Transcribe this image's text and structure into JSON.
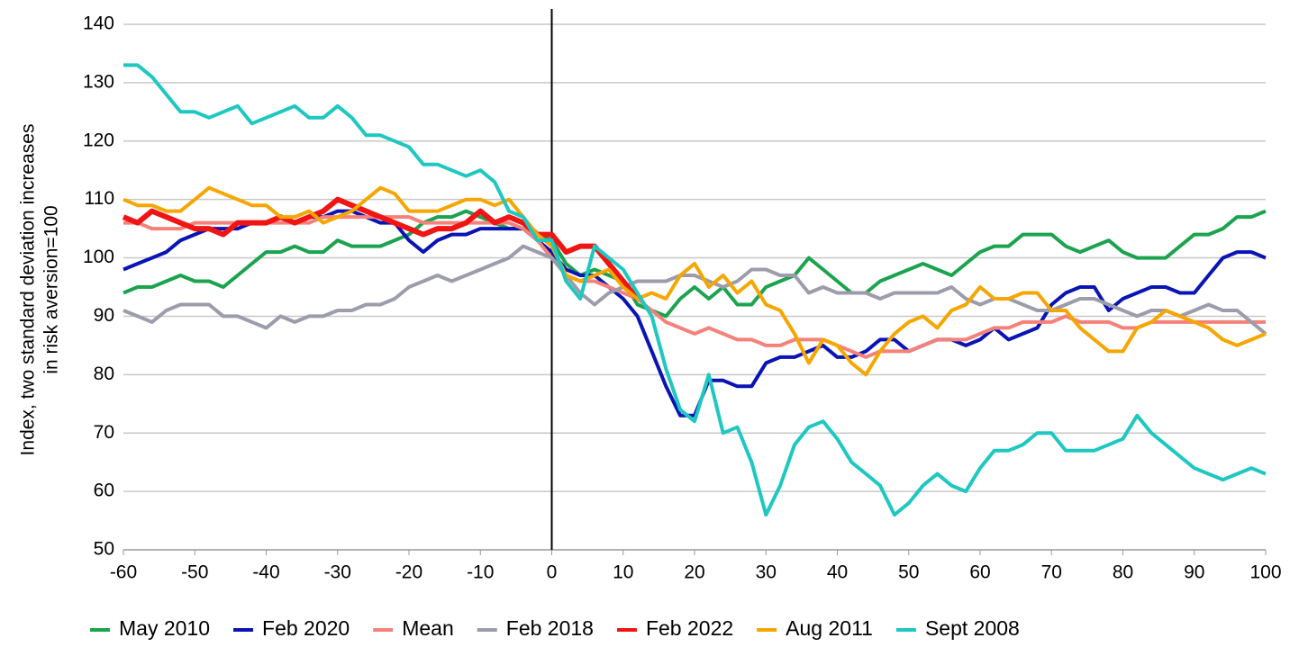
{
  "chart_data": {
    "type": "line",
    "y_label": [
      "Index, two standard deviation increases",
      "in risk aversion=100"
    ],
    "x": [
      -60,
      -58,
      -56,
      -54,
      -52,
      -50,
      -48,
      -46,
      -44,
      -42,
      -40,
      -38,
      -36,
      -34,
      -32,
      -30,
      -28,
      -26,
      -24,
      -22,
      -20,
      -18,
      -16,
      -14,
      -12,
      -10,
      -8,
      -6,
      -4,
      -2,
      0,
      2,
      4,
      6,
      8,
      10,
      12,
      14,
      16,
      18,
      20,
      22,
      24,
      26,
      28,
      30,
      32,
      34,
      36,
      38,
      40,
      42,
      44,
      46,
      48,
      50,
      52,
      54,
      56,
      58,
      60,
      62,
      64,
      66,
      68,
      70,
      72,
      74,
      76,
      78,
      80,
      82,
      84,
      86,
      88,
      90,
      92,
      94,
      96,
      98,
      100
    ],
    "xlim": [
      -60,
      100
    ],
    "xticks": [
      -60,
      -50,
      -40,
      -30,
      -20,
      -10,
      0,
      10,
      20,
      30,
      40,
      50,
      60,
      70,
      80,
      90,
      100
    ],
    "ylim": [
      50,
      140
    ],
    "yticks": [
      50,
      60,
      70,
      80,
      90,
      100,
      110,
      120,
      130,
      140
    ],
    "grid": true,
    "legend": "bottom",
    "vline_x": 0,
    "series": [
      {
        "name": "May 2010",
        "color": "#1ba34f",
        "line_width": 4,
        "values": [
          94,
          95,
          95,
          96,
          97,
          96,
          96,
          95,
          97,
          99,
          101,
          101,
          102,
          101,
          101,
          103,
          102,
          102,
          102,
          103,
          104,
          106,
          107,
          107,
          108,
          107,
          106,
          105,
          105,
          104,
          103,
          99,
          97,
          98,
          97,
          96,
          92,
          91,
          90,
          93,
          95,
          93,
          95,
          92,
          92,
          95,
          96,
          97,
          100,
          98,
          96,
          94,
          94,
          96,
          97,
          98,
          99,
          98,
          97,
          99,
          101,
          102,
          102,
          104,
          104,
          104,
          102,
          101,
          102,
          103,
          101,
          100,
          100,
          100,
          102,
          104,
          104,
          105,
          107,
          107,
          108
        ]
      },
      {
        "name": "Feb 2020",
        "color": "#0a14b4",
        "line_width": 4,
        "values": [
          98,
          99,
          100,
          101,
          103,
          104,
          105,
          105,
          105,
          106,
          106,
          107,
          106,
          107,
          107,
          108,
          108,
          107,
          106,
          106,
          103,
          101,
          103,
          104,
          104,
          105,
          105,
          105,
          105,
          103,
          101,
          98,
          97,
          97,
          95,
          93,
          90,
          84,
          78,
          73,
          73,
          79,
          79,
          78,
          78,
          82,
          83,
          83,
          84,
          85,
          83,
          83,
          84,
          86,
          86,
          84,
          85,
          86,
          86,
          85,
          86,
          88,
          86,
          87,
          88,
          92,
          94,
          95,
          95,
          91,
          93,
          94,
          95,
          95,
          94,
          94,
          97,
          100,
          101,
          101,
          100
        ]
      },
      {
        "name": "Mean",
        "color": "#f4827a",
        "line_width": 4,
        "values": [
          106,
          106,
          105,
          105,
          105,
          106,
          106,
          106,
          106,
          106,
          106,
          106,
          106,
          106,
          107,
          107,
          107,
          107,
          107,
          107,
          107,
          106,
          106,
          106,
          106,
          106,
          106,
          106,
          105,
          103,
          100,
          97,
          96,
          96,
          95,
          94,
          93,
          91,
          89,
          88,
          87,
          88,
          87,
          86,
          86,
          85,
          85,
          86,
          86,
          86,
          85,
          84,
          83,
          84,
          84,
          84,
          85,
          86,
          86,
          86,
          87,
          88,
          88,
          89,
          89,
          89,
          90,
          89,
          89,
          89,
          88,
          88,
          89,
          89,
          89,
          89,
          89,
          89,
          89,
          89,
          89
        ]
      },
      {
        "name": "Feb 2018",
        "color": "#9c9cab",
        "line_width": 4,
        "values": [
          91,
          90,
          89,
          91,
          92,
          92,
          92,
          90,
          90,
          89,
          88,
          90,
          89,
          90,
          90,
          91,
          91,
          92,
          92,
          93,
          95,
          96,
          97,
          96,
          97,
          98,
          99,
          100,
          102,
          101,
          100,
          97,
          94,
          92,
          94,
          95,
          96,
          96,
          96,
          97,
          97,
          96,
          95,
          96,
          98,
          98,
          97,
          97,
          94,
          95,
          94,
          94,
          94,
          93,
          94,
          94,
          94,
          94,
          95,
          93,
          92,
          93,
          93,
          92,
          91,
          91,
          92,
          93,
          93,
          92,
          91,
          90,
          91,
          91,
          90,
          91,
          92,
          91,
          91,
          89,
          87
        ]
      },
      {
        "name": "Feb 2022",
        "color": "#f01414",
        "line_width": 6,
        "values": [
          107,
          106,
          108,
          107,
          106,
          105,
          105,
          104,
          106,
          106,
          106,
          107,
          106,
          107,
          108,
          110,
          109,
          108,
          107,
          106,
          105,
          104,
          105,
          105,
          106,
          108,
          106,
          107,
          106,
          104,
          104,
          101,
          102,
          102,
          99,
          96,
          93,
          null,
          null,
          null,
          null,
          null,
          null,
          null,
          null,
          null,
          null,
          null,
          null,
          null,
          null,
          null,
          null,
          null,
          null,
          null,
          null,
          null,
          null,
          null,
          null,
          null,
          null,
          null,
          null,
          null,
          null,
          null,
          null,
          null,
          null,
          null,
          null,
          null,
          null,
          null,
          null,
          null,
          null,
          null,
          null
        ]
      },
      {
        "name": "Aug 2011",
        "color": "#f5a600",
        "line_width": 4,
        "values": [
          110,
          109,
          109,
          108,
          108,
          110,
          112,
          111,
          110,
          109,
          109,
          107,
          107,
          108,
          106,
          107,
          108,
          110,
          112,
          111,
          108,
          108,
          108,
          109,
          110,
          110,
          109,
          110,
          107,
          104,
          102,
          97,
          96,
          97,
          98,
          95,
          93,
          94,
          93,
          97,
          99,
          95,
          97,
          94,
          96,
          92,
          91,
          87,
          82,
          86,
          85,
          82,
          80,
          84,
          87,
          89,
          90,
          88,
          91,
          92,
          95,
          93,
          93,
          94,
          94,
          91,
          91,
          88,
          86,
          84,
          84,
          88,
          89,
          91,
          90,
          89,
          88,
          86,
          85,
          86,
          87
        ]
      },
      {
        "name": "Sept 2008",
        "color": "#1ec8c0",
        "line_width": 4,
        "values": [
          133,
          133,
          131,
          128,
          125,
          125,
          124,
          125,
          126,
          123,
          124,
          125,
          126,
          124,
          124,
          126,
          124,
          121,
          121,
          120,
          119,
          116,
          116,
          115,
          114,
          115,
          113,
          108,
          107,
          103,
          103,
          96,
          93,
          102,
          100,
          98,
          94,
          90,
          81,
          74,
          72,
          80,
          70,
          71,
          65,
          56,
          61,
          68,
          71,
          72,
          69,
          65,
          63,
          61,
          56,
          58,
          61,
          63,
          61,
          60,
          64,
          67,
          67,
          68,
          70,
          70,
          67,
          67,
          67,
          68,
          69,
          73,
          70,
          68,
          66,
          64,
          63,
          62,
          63,
          64,
          63
        ]
      }
    ]
  }
}
